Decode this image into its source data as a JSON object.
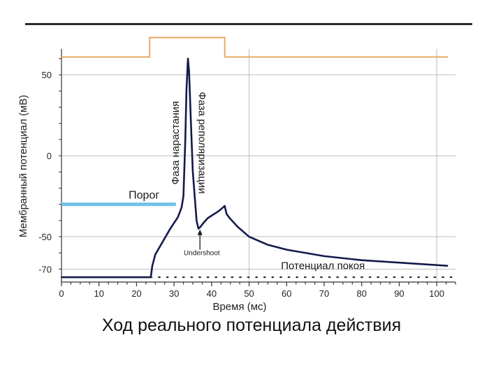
{
  "slide": {
    "caption": "Ход реального потенциала действия"
  },
  "colors": {
    "trace": "#141a4a",
    "stimulus": "#e8a868",
    "threshold": "#74c0e8",
    "grid": "#bdbdbd",
    "axis": "#333333"
  },
  "chart_data": {
    "type": "line",
    "xlabel": "Время (мс)",
    "ylabel": "Мембранный потенциал (мВ)",
    "xlim": [
      0,
      105
    ],
    "ylim": [
      -78,
      66
    ],
    "x_ticks": [
      0,
      10,
      20,
      30,
      40,
      50,
      60,
      70,
      80,
      90,
      100
    ],
    "y_ticks": [
      -70,
      -50,
      0,
      50
    ],
    "grid": true,
    "series": [
      {
        "x": [
          0,
          23.8,
          24.2,
          25,
          27,
          29,
          31,
          32,
          32.5,
          33,
          33.3,
          33.7,
          34,
          34.5,
          35,
          35.5,
          36,
          36.5,
          37,
          38,
          39,
          40,
          41,
          42,
          43,
          43.5,
          44,
          45,
          47,
          50,
          55,
          60,
          70,
          80,
          90,
          100,
          103
        ],
        "y": [
          -75,
          -75,
          -68,
          -61,
          -53,
          -45,
          -38,
          -32,
          -25,
          10,
          40,
          60,
          52,
          20,
          -10,
          -25,
          -40,
          -45,
          -44,
          -41,
          -38.5,
          -37,
          -35.5,
          -34,
          -32,
          -31,
          -36,
          -39,
          -44,
          -50,
          -55,
          -58,
          -62,
          -64.5,
          -66,
          -67.5,
          -68
        ]
      },
      {
        "x": [
          0,
          23.5,
          23.5,
          43.5,
          43.5,
          103
        ],
        "y": [
          61,
          61,
          73,
          73,
          61,
          61
        ]
      }
    ],
    "threshold": {
      "x": [
        0,
        30.5
      ],
      "y": -30,
      "label": "Порог"
    },
    "resting_line": {
      "y": -75,
      "dotted": true
    },
    "annotations": [
      {
        "text": "Фаза нарастания",
        "x": 31.3,
        "y": 8,
        "rotation": -90
      },
      {
        "text": "Фаза реполяризации",
        "x": 36.6,
        "y": 8,
        "rotation": 90
      },
      {
        "text": "Undershoot",
        "x": 37.2,
        "y": -61.5
      },
      {
        "text": "Потенциал покоя",
        "x": 58.5,
        "y": -70
      }
    ]
  }
}
